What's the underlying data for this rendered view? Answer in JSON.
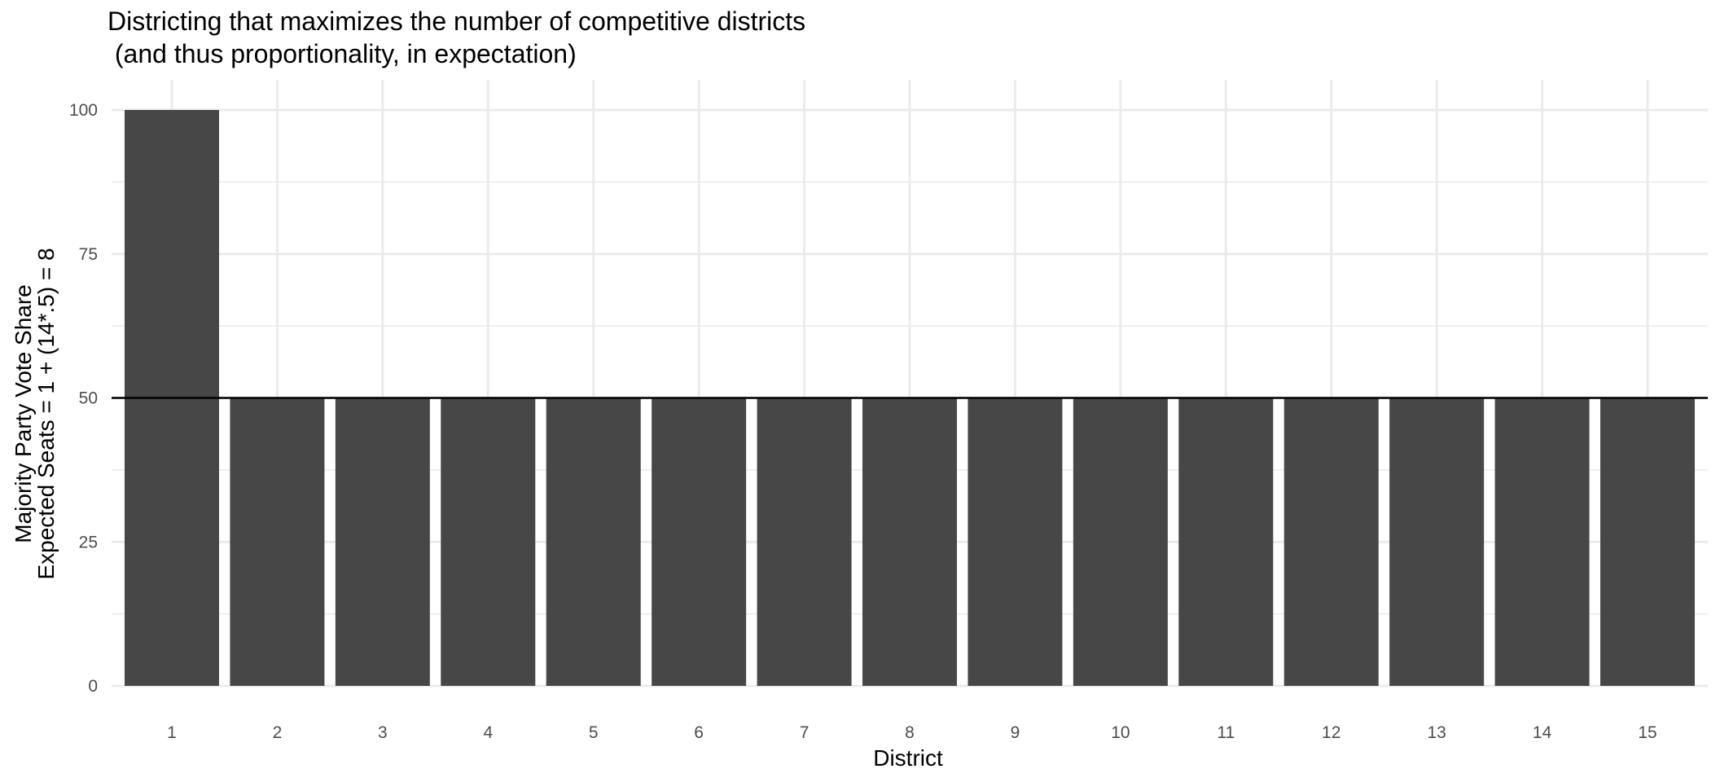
{
  "chart_data": {
    "type": "bar",
    "title_lines": [
      "Districting that maximizes the number of competitive districts",
      " (and thus proportionality, in expectation)"
    ],
    "xlabel": "District",
    "ylabel_lines": [
      "Majority Party Vote Share",
      "Expected Seats = 1 + (14*.5) = 8"
    ],
    "categories": [
      "1",
      "2",
      "3",
      "4",
      "5",
      "6",
      "7",
      "8",
      "9",
      "10",
      "11",
      "12",
      "13",
      "14",
      "15"
    ],
    "values": [
      100,
      50,
      50,
      50,
      50,
      50,
      50,
      50,
      50,
      50,
      50,
      50,
      50,
      50,
      50
    ],
    "yticks": [
      0,
      25,
      50,
      75,
      100
    ],
    "ylim": [
      0,
      105
    ],
    "reference_line": 50,
    "grid": true,
    "bar_color": "#474747",
    "grid_color": "#ebebeb",
    "reference_line_color": "#000000"
  }
}
